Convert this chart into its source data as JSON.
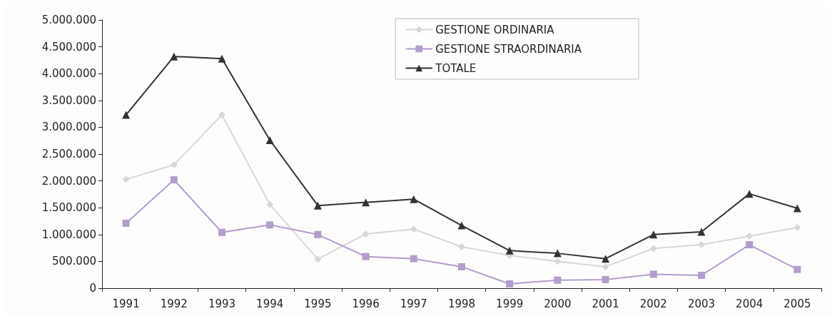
{
  "chart_data": {
    "type": "line",
    "categories": [
      "1991",
      "1992",
      "1993",
      "1994",
      "1995",
      "1996",
      "1997",
      "1998",
      "1999",
      "2000",
      "2001",
      "2002",
      "2003",
      "2004",
      "2005"
    ],
    "series": [
      {
        "name": "GESTIONE ORDINARIA",
        "color": "#d9d4dc",
        "marker": "diamond",
        "values": [
          2030000,
          2300000,
          3230000,
          1560000,
          540000,
          1010000,
          1100000,
          770000,
          610000,
          500000,
          400000,
          740000,
          810000,
          970000,
          1130000
        ]
      },
      {
        "name": "GESTIONE STRAORDINARIA",
        "color": "#b39dcc",
        "marker": "square",
        "values": [
          1210000,
          2020000,
          1040000,
          1180000,
          1000000,
          590000,
          550000,
          400000,
          80000,
          150000,
          160000,
          260000,
          240000,
          810000,
          350000
        ]
      },
      {
        "name": "TOTALE",
        "color": "#333333",
        "marker": "triangle",
        "values": [
          3230000,
          4320000,
          4280000,
          2760000,
          1540000,
          1600000,
          1660000,
          1170000,
          700000,
          650000,
          550000,
          1000000,
          1050000,
          1760000,
          1490000
        ]
      }
    ],
    "ylim": [
      0,
      5000000
    ],
    "yticks": [
      {
        "value": 0,
        "label": "0"
      },
      {
        "value": 500000,
        "label": "500.000"
      },
      {
        "value": 1000000,
        "label": "1.000.000"
      },
      {
        "value": 1500000,
        "label": "1.500.000"
      },
      {
        "value": 2000000,
        "label": "2.000.000"
      },
      {
        "value": 2500000,
        "label": "2.500.000"
      },
      {
        "value": 3000000,
        "label": "3.000.000"
      },
      {
        "value": 3500000,
        "label": "3.500.000"
      },
      {
        "value": 4000000,
        "label": "4.000.000"
      },
      {
        "value": 4500000,
        "label": "4.500.000"
      },
      {
        "value": 5000000,
        "label": "5.000.000"
      }
    ],
    "grid": false,
    "legend": "top right",
    "line_style": "solid"
  }
}
